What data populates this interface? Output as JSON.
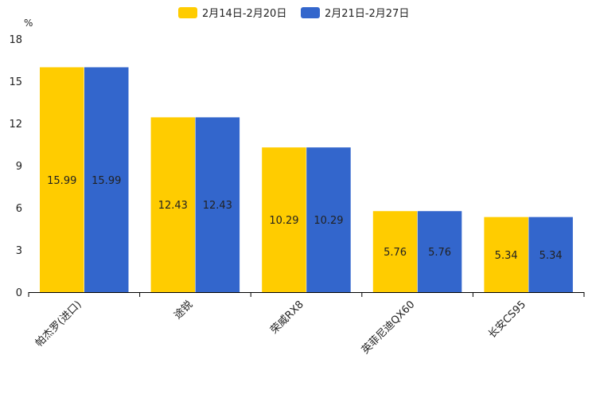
{
  "chart_data": {
    "type": "bar",
    "title": "",
    "ylabel": "%",
    "xlabel": "",
    "ylim": [
      0,
      18
    ],
    "yticks": [
      0,
      3,
      6,
      9,
      12,
      15,
      18
    ],
    "categories": [
      "帕杰罗(进口)",
      "途锐",
      "荣威RX8",
      "英菲尼迪QX60",
      "长安CS95"
    ],
    "series": [
      {
        "name": "2月14日-2月20日",
        "color": "#ffcc00",
        "values": [
          15.99,
          12.43,
          10.29,
          5.76,
          5.34
        ],
        "labels": [
          "15.99",
          "12.43",
          "10.29",
          "5.76",
          "5.34"
        ]
      },
      {
        "name": "2月21日-2月27日",
        "color": "#3366cc",
        "values": [
          15.99,
          12.43,
          10.29,
          5.76,
          5.34
        ],
        "labels": [
          "15.99",
          "12.43",
          "10.29",
          "5.76",
          "5.34"
        ]
      }
    ],
    "legend_position": "top-center",
    "grid": false
  }
}
